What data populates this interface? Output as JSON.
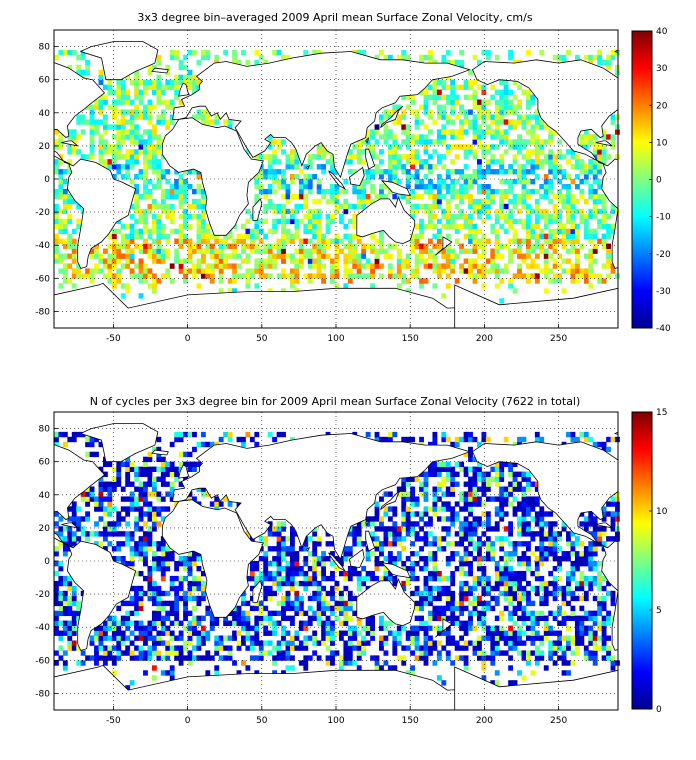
{
  "chart_data": [
    {
      "type": "heatmap",
      "title": "3x3 degree bin–averaged 2009 April mean Surface Zonal Velocity, cm/s",
      "xlabel": "",
      "ylabel": "",
      "xlim": [
        -90,
        290
      ],
      "ylim": [
        -90,
        90
      ],
      "x_ticks": [
        -50,
        0,
        50,
        100,
        150,
        200,
        250
      ],
      "y_ticks": [
        80,
        60,
        40,
        20,
        0,
        -20,
        -40,
        -60,
        -80
      ],
      "x_tick_labels": [
        "-50",
        "0",
        "50",
        "100",
        "150",
        "200",
        "250"
      ],
      "y_tick_labels": [
        "80",
        "60",
        "40",
        "20",
        "0",
        "-20",
        "-40",
        "-60",
        "-80"
      ],
      "grid": true,
      "bin_size_deg": 3,
      "colorbar": {
        "range": [
          -40,
          40
        ],
        "ticks": [
          40,
          30,
          20,
          10,
          0,
          -10,
          -20,
          -30,
          -40
        ],
        "tick_labels": [
          "40",
          "30",
          "20",
          "10",
          "0",
          "-10",
          "-20",
          "-30",
          "-40"
        ],
        "colormap": "jet"
      }
    },
    {
      "type": "heatmap",
      "title": "N of cycles per 3x3 degree bin for 2009 April mean Surface Zonal Velocity (7622 in total)",
      "xlabel": "",
      "ylabel": "",
      "xlim": [
        -90,
        290
      ],
      "ylim": [
        -90,
        90
      ],
      "x_ticks": [
        -50,
        0,
        50,
        100,
        150,
        200,
        250
      ],
      "y_ticks": [
        80,
        60,
        40,
        20,
        0,
        -20,
        -40,
        -60,
        -80
      ],
      "x_tick_labels": [
        "-50",
        "0",
        "50",
        "100",
        "150",
        "200",
        "250"
      ],
      "y_tick_labels": [
        "80",
        "60",
        "40",
        "20",
        "0",
        "-20",
        "-40",
        "-60",
        "-80"
      ],
      "grid": true,
      "bin_size_deg": 3,
      "colorbar": {
        "range": [
          0,
          15
        ],
        "ticks": [
          15,
          10,
          5,
          0
        ],
        "tick_labels": [
          "15",
          "10",
          "5",
          "0"
        ],
        "colormap": "jet"
      }
    }
  ]
}
